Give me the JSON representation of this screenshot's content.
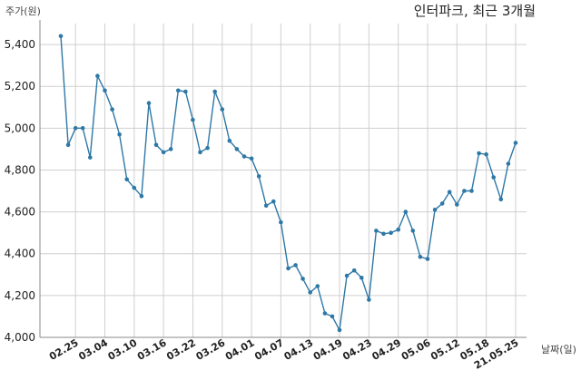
{
  "chart_data": {
    "type": "line",
    "title": "인터파크, 최근 3개월",
    "ylabel": "주가(원)",
    "xlabel": "날짜(일)",
    "ylim": [
      4000,
      5500
    ],
    "yticks": [
      4000,
      4200,
      4400,
      4600,
      4800,
      5000,
      5200,
      5400
    ],
    "ytick_labels": [
      "4,000",
      "4,200",
      "4,400",
      "4,600",
      "4,800",
      "5,000",
      "5,200",
      "5,400"
    ],
    "xtick_labels": [
      "02.25",
      "03.04",
      "03.10",
      "03.16",
      "03.22",
      "03.26",
      "04.01",
      "04.07",
      "04.13",
      "04.19",
      "04.23",
      "04.29",
      "05.06",
      "05.12",
      "05.18",
      "21.05.25"
    ],
    "xtick_indices": [
      2,
      6,
      10,
      14,
      18,
      22,
      26,
      30,
      34,
      38,
      42,
      46,
      50,
      54,
      58,
      62
    ],
    "grid": true,
    "series": [
      {
        "color": "#2e78a6",
        "values": [
          5440,
          4920,
          5000,
          5000,
          4860,
          5250,
          5180,
          5090,
          4970,
          4755,
          4715,
          4675,
          5120,
          4920,
          4885,
          4900,
          5180,
          5175,
          5040,
          4885,
          4905,
          5175,
          5090,
          4940,
          4900,
          4865,
          4855,
          4770,
          4630,
          4650,
          4550,
          4330,
          4345,
          4280,
          4215,
          4245,
          4115,
          4100,
          4035,
          4295,
          4320,
          4285,
          4180,
          4510,
          4495,
          4500,
          4515,
          4600,
          4510,
          4385,
          4375,
          4610,
          4640,
          4695,
          4635,
          4700,
          4700,
          4880,
          4875,
          4765,
          4660,
          4830,
          4930
        ]
      }
    ]
  }
}
